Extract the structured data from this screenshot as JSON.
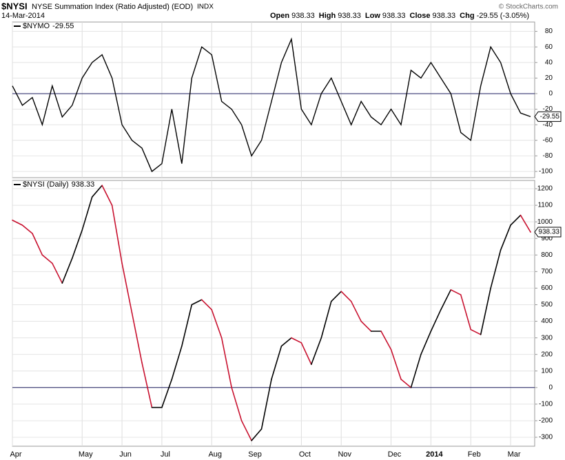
{
  "header": {
    "symbol": "$NYSI",
    "name": "NYSE Summation Index (Ratio Adjusted) (EOD)",
    "exchange": "INDX",
    "date": "14-Mar-2014",
    "copyright": "© StockCharts.com",
    "quote": [
      {
        "label": "Open",
        "value": "938.33"
      },
      {
        "label": "High",
        "value": "938.33"
      },
      {
        "label": "Low",
        "value": "938.33"
      },
      {
        "label": "Close",
        "value": "938.33"
      },
      {
        "label": "Chg",
        "value": "-29.55 (-3.05%)"
      }
    ]
  },
  "chart_data": [
    {
      "type": "line",
      "series": [
        {
          "name": "$NYMO",
          "color": "#000000",
          "values": [
            10,
            -15,
            -5,
            -40,
            10,
            -30,
            -15,
            20,
            40,
            50,
            20,
            -40,
            -60,
            -70,
            -100,
            -90,
            -20,
            -90,
            20,
            60,
            50,
            -10,
            -20,
            -40,
            -80,
            -60,
            -10,
            40,
            70,
            -20,
            -40,
            0,
            20,
            -10,
            -40,
            -10,
            -30,
            -40,
            -20,
            -40,
            30,
            20,
            40,
            20,
            0,
            -50,
            -60,
            10,
            60,
            40,
            0,
            -25,
            -29.55
          ]
        }
      ],
      "ylim": [
        -108,
        92
      ],
      "yticks": [
        80,
        60,
        40,
        20,
        0,
        -20,
        -40,
        -60,
        -80,
        -100
      ],
      "zero_line": true,
      "grid": true
    },
    {
      "type": "line",
      "series": [
        {
          "name": "$NYSI (Daily)",
          "color": "#000000",
          "falling_color": "#c8102e",
          "values": [
            1010,
            980,
            930,
            800,
            750,
            630,
            780,
            950,
            1150,
            1220,
            1100,
            750,
            450,
            150,
            -120,
            -120,
            50,
            250,
            500,
            530,
            470,
            300,
            0,
            -200,
            -320,
            -250,
            50,
            250,
            300,
            270,
            140,
            300,
            520,
            580,
            520,
            400,
            340,
            340,
            230,
            50,
            0,
            200,
            340,
            470,
            590,
            560,
            350,
            320,
            600,
            830,
            980,
            1040,
            938.33
          ]
        }
      ],
      "categories": [
        "Apr",
        null,
        null,
        null,
        null,
        null,
        null,
        "May",
        null,
        null,
        null,
        "Jun",
        null,
        null,
        null,
        "Jul",
        null,
        null,
        null,
        null,
        "Aug",
        null,
        null,
        null,
        "Sep",
        null,
        null,
        null,
        null,
        "Oct",
        null,
        null,
        null,
        "Nov",
        null,
        null,
        null,
        null,
        "Dec",
        null,
        null,
        null,
        "2014",
        null,
        null,
        null,
        "Feb",
        null,
        null,
        null,
        "Mar",
        null,
        null
      ],
      "ylim": [
        -354,
        1250
      ],
      "yticks": [
        1200,
        1100,
        1000,
        900,
        800,
        700,
        600,
        500,
        400,
        300,
        200,
        100,
        0,
        -100,
        -200,
        -300
      ],
      "zero_line": true,
      "grid": true
    }
  ]
}
